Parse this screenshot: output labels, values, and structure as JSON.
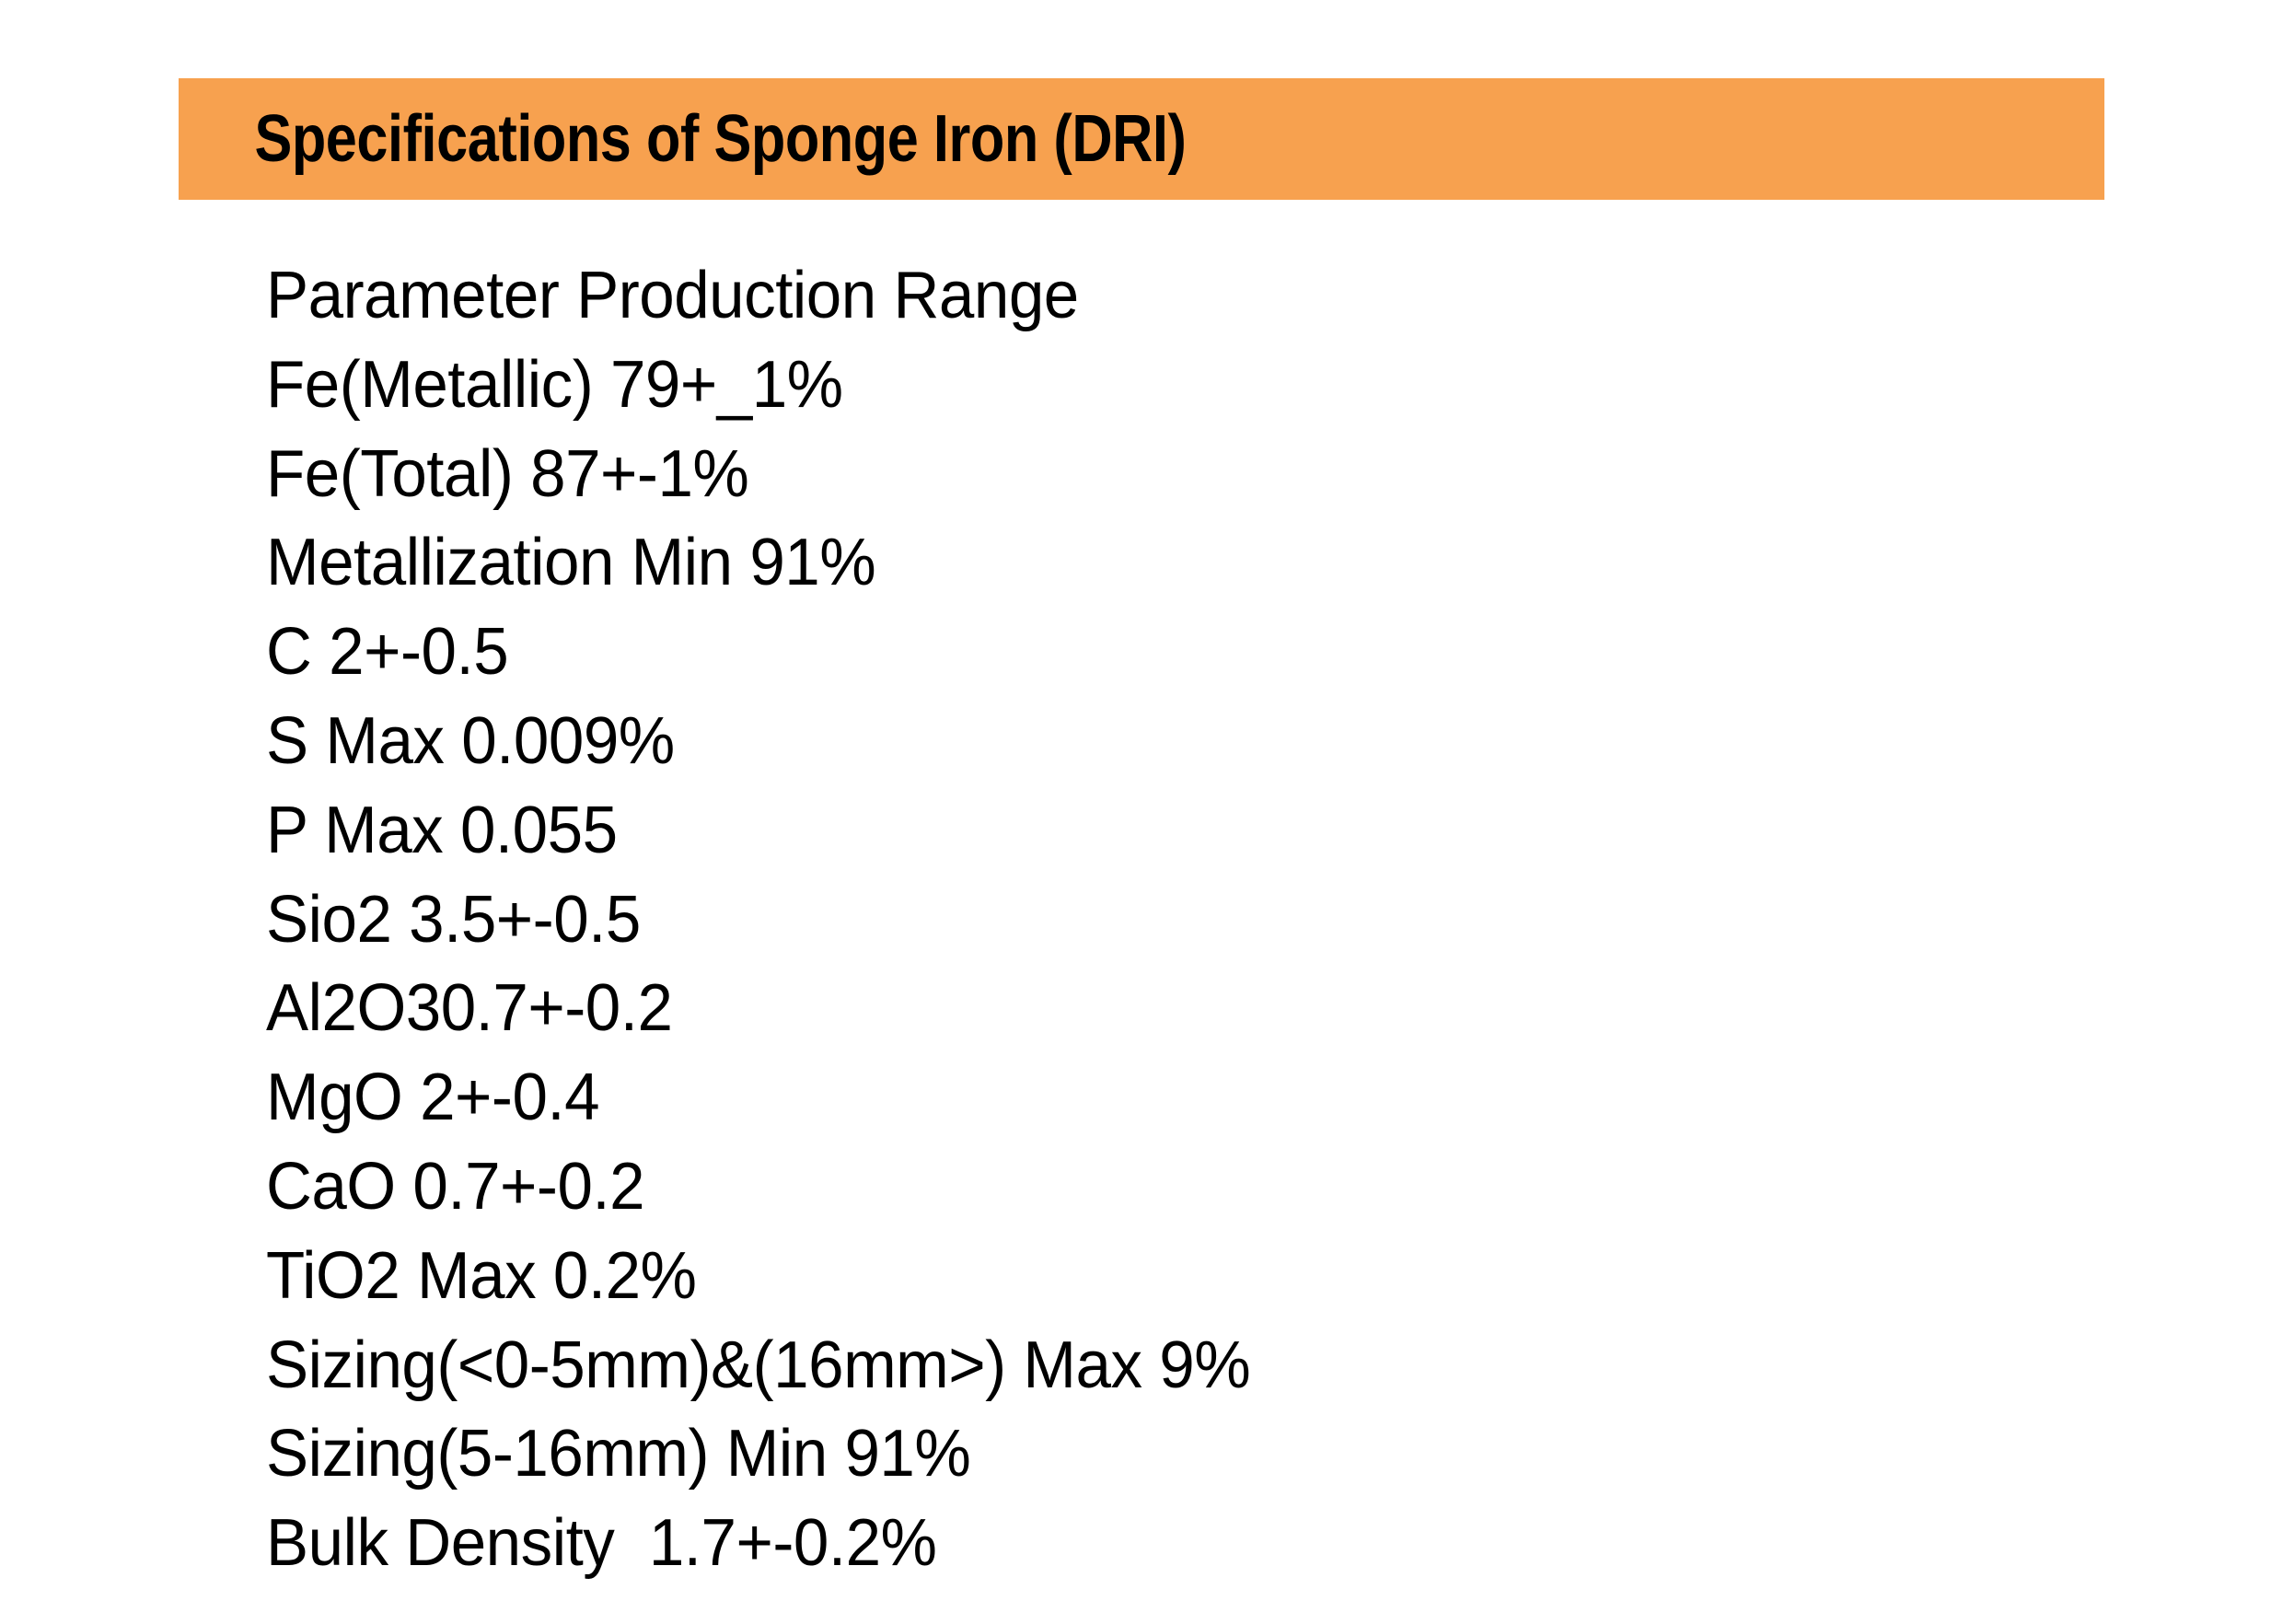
{
  "header": {
    "title": "Specifications of Sponge Iron (DRI)",
    "background_color": "#f7a14f",
    "text_color": "#000000"
  },
  "specs": {
    "lines": [
      "Parameter Production Range",
      "Fe(Metallic) 79+_1%",
      "Fe(Total) 87+-1%",
      "Metallization Min 91%",
      "C 2+-0.5",
      "S Max 0.009%",
      "P Max 0.055",
      "Sio2 3.5+-0.5",
      "Al2O30.7+-0.2",
      "MgO 2+-0.4",
      "CaO 0.7+-0.2",
      "TiO2 Max 0.2%",
      "Sizing(<0-5mm)&(16mm>) Max 9%",
      "Sizing(5-16mm) Min 91%",
      "Bulk Density  1.7+-0.2%"
    ]
  }
}
